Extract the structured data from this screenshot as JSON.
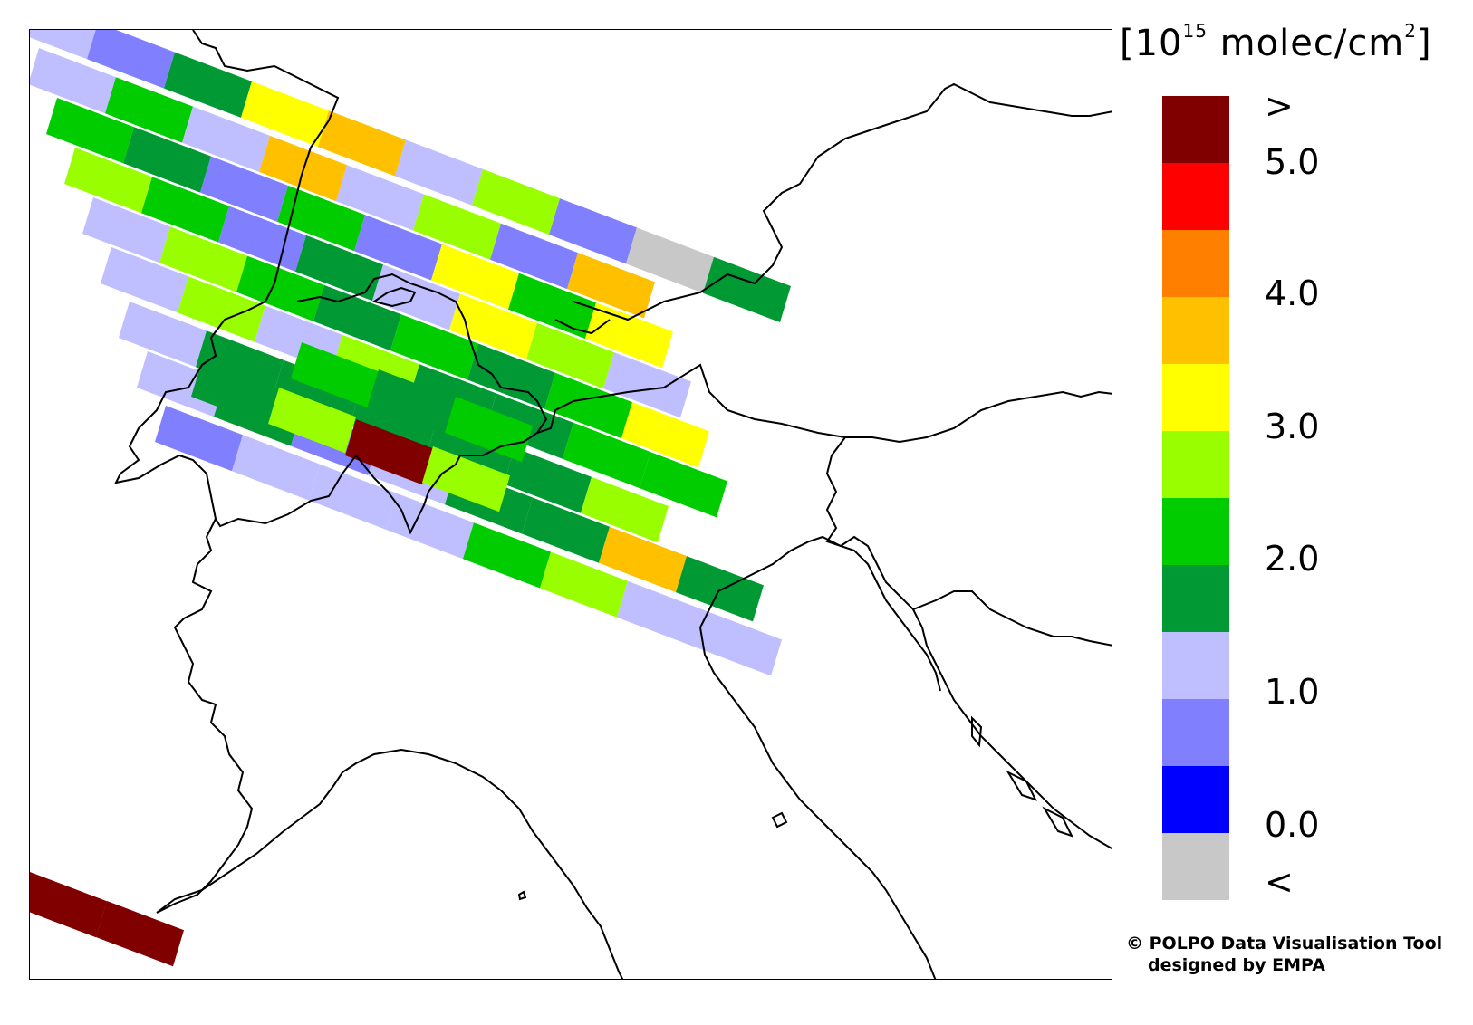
{
  "legend": {
    "unit_prefix": "[10",
    "unit_exponent": "15",
    "unit_middle": " molec/cm",
    "unit_power": "2",
    "unit_suffix": "]",
    "colors_top_to_bottom": [
      "#800000",
      "#ff0000",
      "#ff8000",
      "#ffc000",
      "#ffff00",
      "#99ff00",
      "#00cc00",
      "#009933",
      "#bfbfff",
      "#8080ff",
      "#0000ff",
      "#c8c8c8"
    ],
    "tick_labels": [
      ">",
      "5.0",
      "4.0",
      "3.0",
      "2.0",
      "1.0",
      "0.0",
      "<"
    ]
  },
  "credits": {
    "line1": "© POLPO Data Visualisation Tool",
    "line2": "designed by EMPA"
  },
  "map": {
    "border_color": "#000000",
    "swath_colors_description_free": true
  }
}
